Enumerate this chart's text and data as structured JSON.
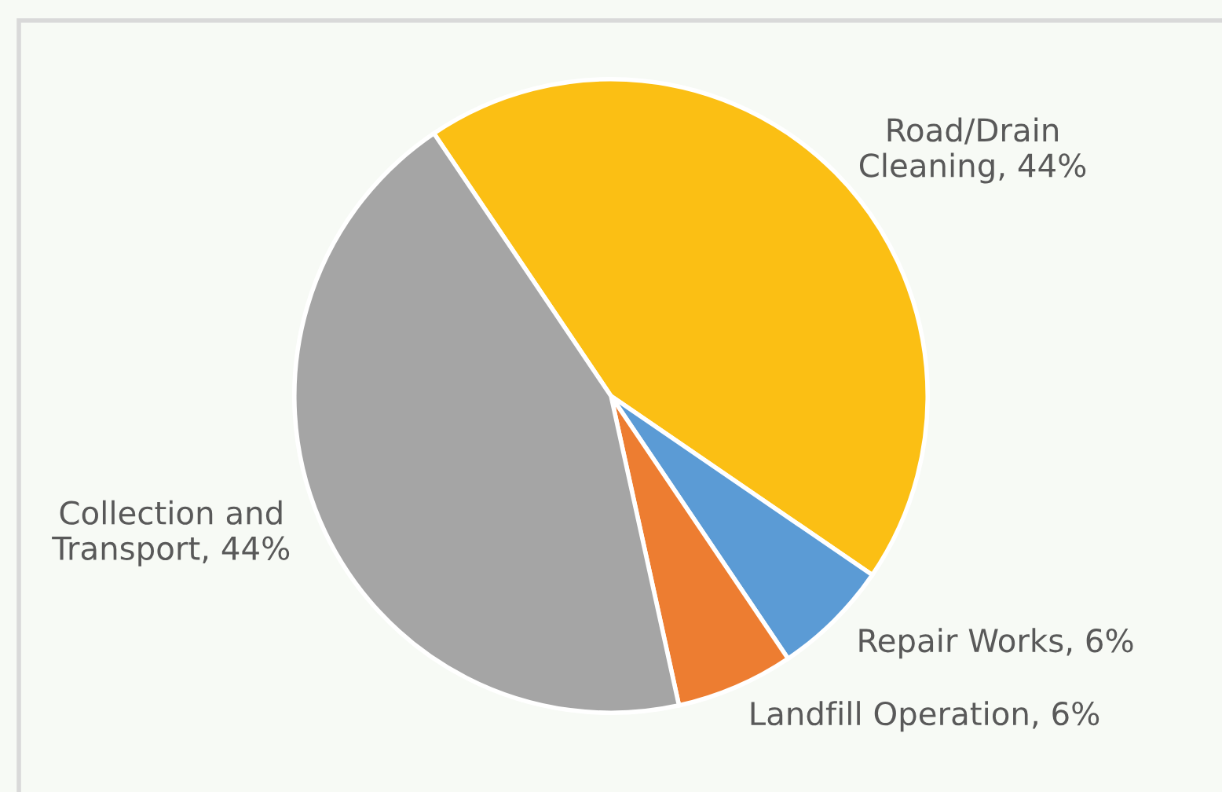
{
  "chart_data": {
    "type": "pie",
    "categories": [
      "Road/Drain Cleaning, 44%",
      "Repair Works, 6%",
      "Landfill Operation, 6%",
      "Collection and Transport, 44%"
    ],
    "values": [
      44,
      6,
      6,
      44
    ],
    "colors": [
      "#fbbf14",
      "#5b9bd5",
      "#ed7d31",
      "#a5a5a5"
    ]
  }
}
